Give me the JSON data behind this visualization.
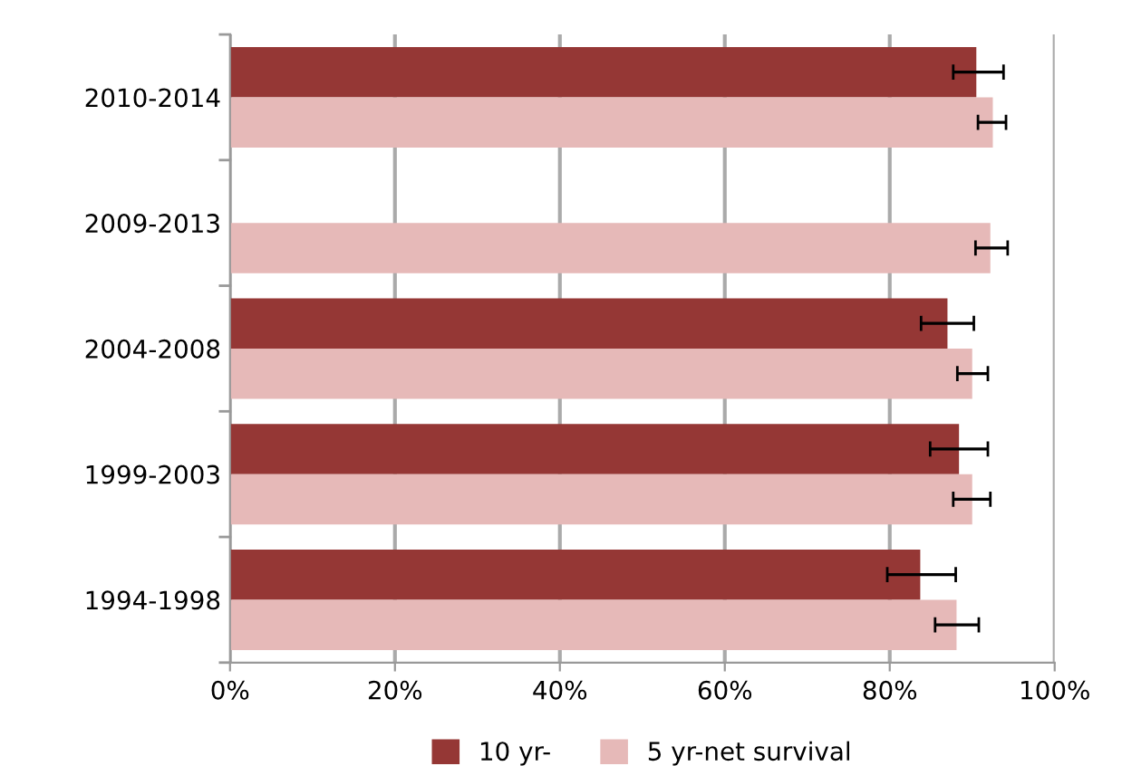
{
  "chart_data": {
    "type": "bar",
    "orientation": "horizontal",
    "categories": [
      "2010-2014",
      "2009-2013",
      "2004-2008",
      "1999-2003",
      "1994-1998"
    ],
    "series": [
      {
        "name": "10 yr-",
        "color": "#953735",
        "values": [
          90.5,
          null,
          87.0,
          88.4,
          83.7
        ],
        "errors": [
          [
            87.7,
            93.8
          ],
          null,
          [
            83.8,
            90.2
          ],
          [
            84.9,
            91.9
          ],
          [
            79.7,
            88.0
          ]
        ]
      },
      {
        "name": "5 yr-net survival",
        "color": "#e6b9b8",
        "values": [
          92.5,
          92.2,
          90.0,
          90.0,
          88.1
        ],
        "errors": [
          [
            90.7,
            94.1
          ],
          [
            90.4,
            94.3
          ],
          [
            88.2,
            91.9
          ],
          [
            87.7,
            92.2
          ],
          [
            85.5,
            90.8
          ]
        ]
      }
    ],
    "xlim": [
      0,
      100
    ],
    "xticks": [
      {
        "value": 0,
        "label": "0%"
      },
      {
        "value": 20,
        "label": "20%"
      },
      {
        "value": 40,
        "label": "40%"
      },
      {
        "value": 60,
        "label": "60%"
      },
      {
        "value": 80,
        "label": "80%"
      },
      {
        "value": 100,
        "label": "100%"
      }
    ],
    "grid": "x",
    "legend": "bottom"
  }
}
